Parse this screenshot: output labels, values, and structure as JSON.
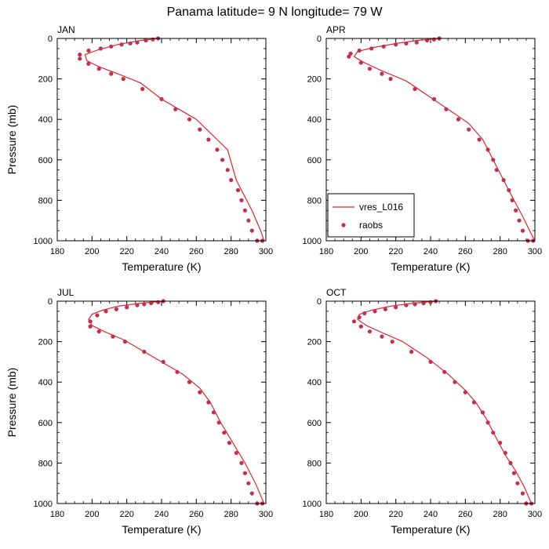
{
  "figure": {
    "title": "Panama  latitude= 9 N longitude= 79 W"
  },
  "colors": {
    "model_line": "#e8232a",
    "obs_marker": "#c1304f"
  },
  "chart_data": [
    {
      "type": "line",
      "panel_label": "JAN",
      "xlabel": "Temperature (K)",
      "ylabel": "Pressure (mb)",
      "xlim": [
        180,
        300
      ],
      "ylim": [
        0,
        1000
      ],
      "y_inverted": true,
      "x_ticks": [
        180,
        200,
        220,
        240,
        260,
        280,
        300
      ],
      "y_ticks": [
        0,
        200,
        400,
        600,
        800,
        1000
      ],
      "series": [
        {
          "name": "vres_L016",
          "kind": "line",
          "x": [
            238,
            228,
            215,
            204,
            196,
            197,
            204,
            215,
            228,
            240,
            250,
            260,
            266,
            272,
            278,
            283,
            289,
            292,
            297,
            299
          ],
          "y": [
            0,
            10,
            30,
            55,
            80,
            110,
            140,
            175,
            220,
            300,
            350,
            400,
            450,
            500,
            550,
            700,
            800,
            850,
            950,
            1000
          ]
        },
        {
          "name": "raobs",
          "kind": "marker",
          "x": [
            238,
            235,
            231,
            226,
            222,
            217,
            211,
            205,
            198,
            193,
            193,
            198,
            204,
            211,
            218,
            229,
            240,
            248,
            256,
            262,
            267,
            272,
            275,
            278,
            280,
            284,
            286,
            288,
            290,
            292,
            295,
            298
          ],
          "y": [
            0,
            5,
            10,
            20,
            25,
            30,
            40,
            50,
            60,
            80,
            100,
            125,
            150,
            175,
            200,
            250,
            300,
            350,
            400,
            450,
            500,
            550,
            600,
            650,
            700,
            750,
            800,
            850,
            900,
            950,
            1000,
            1000
          ]
        }
      ]
    },
    {
      "type": "line",
      "panel_label": "APR",
      "xlabel": "Temperature (K)",
      "ylabel": "",
      "xlim": [
        180,
        300
      ],
      "ylim": [
        0,
        1000
      ],
      "y_inverted": true,
      "x_ticks": [
        180,
        200,
        220,
        240,
        260,
        280,
        300
      ],
      "y_ticks": [
        0,
        200,
        400,
        600,
        800,
        1000
      ],
      "series": [
        {
          "name": "vres_L016",
          "kind": "line",
          "x": [
            245,
            232,
            220,
            207,
            198,
            196,
            202,
            212,
            226,
            238,
            250,
            262,
            270,
            276,
            282,
            288,
            293,
            297,
            300
          ],
          "y": [
            0,
            10,
            25,
            45,
            65,
            90,
            120,
            160,
            210,
            280,
            350,
            420,
            500,
            600,
            700,
            800,
            880,
            950,
            1000
          ]
        },
        {
          "name": "raobs",
          "kind": "marker",
          "x": [
            245,
            242,
            238,
            232,
            226,
            220,
            213,
            206,
            199,
            194,
            193,
            200,
            205,
            212,
            217,
            231,
            242,
            249,
            256,
            262,
            268,
            273,
            276,
            278,
            282,
            285,
            287,
            289,
            291,
            293,
            296,
            299
          ],
          "y": [
            0,
            5,
            10,
            20,
            25,
            30,
            40,
            50,
            60,
            75,
            90,
            120,
            150,
            175,
            200,
            250,
            300,
            350,
            400,
            450,
            500,
            550,
            600,
            650,
            700,
            750,
            800,
            850,
            900,
            950,
            1000,
            1000
          ]
        }
      ]
    },
    {
      "type": "line",
      "panel_label": "JUL",
      "xlabel": "Temperature (K)",
      "ylabel": "Pressure (mb)",
      "xlim": [
        180,
        300
      ],
      "ylim": [
        0,
        1000
      ],
      "y_inverted": true,
      "x_ticks": [
        180,
        200,
        220,
        240,
        260,
        280,
        300
      ],
      "y_ticks": [
        0,
        200,
        400,
        600,
        800,
        1000
      ],
      "series": [
        {
          "name": "vres_L016",
          "kind": "line",
          "x": [
            241,
            228,
            215,
            206,
            200,
            198,
            200,
            207,
            218,
            228,
            240,
            252,
            262,
            268,
            274,
            281,
            288,
            294,
            299
          ],
          "y": [
            0,
            10,
            25,
            45,
            65,
            90,
            120,
            150,
            190,
            240,
            300,
            360,
            430,
            500,
            600,
            700,
            800,
            900,
            1000
          ]
        },
        {
          "name": "raobs",
          "kind": "marker",
          "x": [
            241,
            238,
            234,
            230,
            226,
            220,
            214,
            208,
            203,
            199,
            199,
            204,
            212,
            219,
            230,
            241,
            249,
            256,
            262,
            267,
            270,
            273,
            276,
            279,
            283,
            286,
            288,
            290,
            292,
            295,
            298
          ],
          "y": [
            0,
            5,
            10,
            15,
            20,
            30,
            40,
            50,
            70,
            100,
            125,
            150,
            175,
            200,
            250,
            300,
            350,
            400,
            450,
            500,
            550,
            600,
            650,
            700,
            750,
            800,
            850,
            900,
            950,
            1000,
            1000
          ]
        }
      ]
    },
    {
      "type": "line",
      "panel_label": "OCT",
      "xlabel": "Temperature (K)",
      "ylabel": "",
      "xlim": [
        180,
        300
      ],
      "ylim": [
        0,
        1000
      ],
      "y_inverted": true,
      "x_ticks": [
        180,
        200,
        220,
        240,
        260,
        280,
        300
      ],
      "y_ticks": [
        0,
        200,
        400,
        600,
        800,
        1000
      ],
      "series": [
        {
          "name": "vres_L016",
          "kind": "line",
          "x": [
            243,
            230,
            217,
            206,
            199,
            198,
            203,
            212,
            224,
            238,
            250,
            260,
            266,
            272,
            278,
            283,
            289,
            294,
            298
          ],
          "y": [
            0,
            10,
            25,
            45,
            65,
            90,
            120,
            155,
            200,
            280,
            360,
            440,
            500,
            580,
            680,
            760,
            840,
            920,
            1000
          ]
        },
        {
          "name": "raobs",
          "kind": "marker",
          "x": [
            243,
            240,
            236,
            231,
            226,
            220,
            214,
            208,
            202,
            199,
            196,
            200,
            205,
            212,
            218,
            229,
            240,
            248,
            254,
            260,
            265,
            270,
            273,
            276,
            280,
            283,
            286,
            288,
            290,
            293,
            295,
            298
          ],
          "y": [
            0,
            5,
            10,
            15,
            20,
            30,
            40,
            50,
            60,
            80,
            100,
            125,
            150,
            175,
            200,
            250,
            300,
            350,
            400,
            450,
            500,
            550,
            600,
            650,
            700,
            750,
            800,
            850,
            900,
            950,
            1000,
            1000
          ]
        }
      ]
    }
  ]
}
